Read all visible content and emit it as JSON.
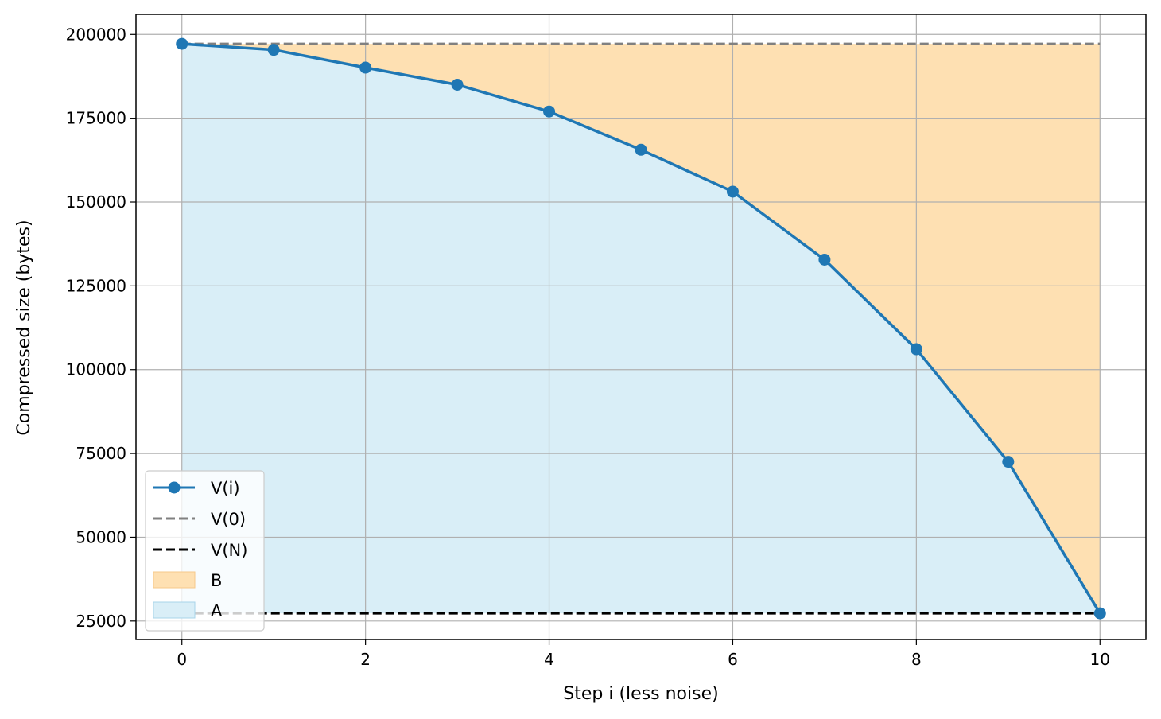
{
  "chart_data": {
    "type": "line",
    "xlabel": "Step i (less noise)",
    "ylabel": "Compressed size (bytes)",
    "xlim": [
      -0.5,
      10.5
    ],
    "ylim": [
      19500,
      206000
    ],
    "grid": true,
    "legend_position": "lower-left",
    "x_ticks": [
      0,
      2,
      4,
      6,
      8,
      10
    ],
    "y_ticks": [
      25000,
      50000,
      75000,
      100000,
      125000,
      150000,
      175000,
      200000
    ],
    "x": [
      0,
      1,
      2,
      3,
      4,
      5,
      6,
      7,
      8,
      9,
      10
    ],
    "series": [
      {
        "name": "V(i)",
        "style": "solid-line-with-markers",
        "color": "#1f77b4",
        "values": [
          197200,
          195400,
          190100,
          185000,
          177000,
          165600,
          153100,
          132800,
          106100,
          72500,
          27300
        ]
      },
      {
        "name": "V(0)",
        "style": "dashed",
        "color": "#808080",
        "value": 197200
      },
      {
        "name": "V(N)",
        "style": "dashed",
        "color": "#000000",
        "value": 27300
      }
    ],
    "fills": [
      {
        "name": "B",
        "description": "between V(i) and V(0)",
        "color": "#fee0b2"
      },
      {
        "name": "A",
        "description": "between V(N) and V(i)",
        "color": "#d9eef7"
      }
    ]
  }
}
